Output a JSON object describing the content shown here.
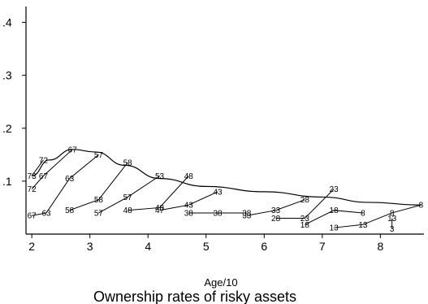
{
  "chart_data": {
    "type": "line",
    "title": "Ownership rates of risky assets",
    "xlabel": "Age/10",
    "ylabel": "",
    "xlim": [
      1.9,
      8.75
    ],
    "ylim": [
      0.0,
      0.43
    ],
    "xticks": [
      2,
      3,
      4,
      5,
      6,
      7,
      8
    ],
    "yticks": [
      {
        "value": 0.1,
        "label": ".1"
      },
      {
        "value": 0.2,
        "label": ".2"
      },
      {
        "value": 0.3,
        "label": ".3"
      },
      {
        "value": 0.4,
        "label": ".4"
      }
    ],
    "grid": false,
    "legend": "none",
    "smooth_curve": [
      {
        "x": 2.0,
        "y": 0.11
      },
      {
        "x": 2.3,
        "y": 0.14
      },
      {
        "x": 2.7,
        "y": 0.16
      },
      {
        "x": 3.1,
        "y": 0.155
      },
      {
        "x": 3.6,
        "y": 0.13
      },
      {
        "x": 4.2,
        "y": 0.105
      },
      {
        "x": 5.0,
        "y": 0.09
      },
      {
        "x": 6.0,
        "y": 0.08
      },
      {
        "x": 7.0,
        "y": 0.07
      },
      {
        "x": 7.8,
        "y": 0.06
      },
      {
        "x": 8.7,
        "y": 0.055
      }
    ],
    "series": [
      {
        "name": "73",
        "points": [
          {
            "x": 2.0,
            "y": 0.11,
            "label": "73"
          },
          {
            "x": 2.2,
            "y": 0.14,
            "label": "72"
          }
        ]
      },
      {
        "name": "72",
        "points": [
          {
            "x": 2.0,
            "y": 0.085,
            "label": "72"
          },
          {
            "x": 2.2,
            "y": 0.11,
            "label": "67"
          },
          {
            "x": 2.7,
            "y": 0.16,
            "label": "67"
          }
        ]
      },
      {
        "name": "67",
        "points": [
          {
            "x": 2.0,
            "y": 0.035,
            "label": "67"
          },
          {
            "x": 2.25,
            "y": 0.04,
            "label": "63"
          },
          {
            "x": 2.65,
            "y": 0.105,
            "label": "63"
          },
          {
            "x": 3.15,
            "y": 0.15,
            "label": "57"
          }
        ]
      },
      {
        "name": "63",
        "points": [
          {
            "x": 2.65,
            "y": 0.045,
            "label": "58"
          },
          {
            "x": 3.15,
            "y": 0.065,
            "label": "58"
          },
          {
            "x": 3.65,
            "y": 0.135,
            "label": "58"
          }
        ]
      },
      {
        "name": "58",
        "points": [
          {
            "x": 3.15,
            "y": 0.04,
            "label": "57"
          },
          {
            "x": 3.65,
            "y": 0.07,
            "label": "57"
          },
          {
            "x": 4.2,
            "y": 0.11,
            "label": "53"
          }
        ]
      },
      {
        "name": "53",
        "points": [
          {
            "x": 3.65,
            "y": 0.045,
            "label": "48"
          },
          {
            "x": 4.2,
            "y": 0.05,
            "label": "48"
          },
          {
            "x": 4.7,
            "y": 0.11,
            "label": "48"
          }
        ]
      },
      {
        "name": "47",
        "points": [
          {
            "x": 4.2,
            "y": 0.045,
            "label": "47"
          },
          {
            "x": 4.7,
            "y": 0.055,
            "label": "43"
          },
          {
            "x": 5.2,
            "y": 0.08,
            "label": "43"
          }
        ]
      },
      {
        "name": "38",
        "points": [
          {
            "x": 4.7,
            "y": 0.04,
            "label": "38"
          },
          {
            "x": 5.2,
            "y": 0.04,
            "label": "38"
          },
          {
            "x": 5.7,
            "y": 0.04,
            "label": "38"
          }
        ]
      },
      {
        "name": "33",
        "points": [
          {
            "x": 5.7,
            "y": 0.035,
            "label": "33"
          },
          {
            "x": 6.2,
            "y": 0.045,
            "label": "33"
          },
          {
            "x": 6.7,
            "y": 0.065,
            "label": "28"
          }
        ]
      },
      {
        "name": "28",
        "points": [
          {
            "x": 6.2,
            "y": 0.03,
            "label": "28"
          },
          {
            "x": 6.7,
            "y": 0.03,
            "label": "23"
          },
          {
            "x": 7.2,
            "y": 0.085,
            "label": "23"
          }
        ]
      },
      {
        "name": "18",
        "points": [
          {
            "x": 6.7,
            "y": 0.018,
            "label": "18"
          },
          {
            "x": 7.2,
            "y": 0.045,
            "label": "18"
          },
          {
            "x": 7.7,
            "y": 0.04,
            "label": "8"
          }
        ]
      },
      {
        "name": "13",
        "points": [
          {
            "x": 7.2,
            "y": 0.012,
            "label": "13"
          },
          {
            "x": 7.7,
            "y": 0.018,
            "label": "13"
          },
          {
            "x": 8.2,
            "y": 0.04,
            "label": "8"
          },
          {
            "x": 8.7,
            "y": 0.055,
            "label": "8"
          }
        ]
      },
      {
        "name": "3",
        "points": [
          {
            "x": 8.2,
            "y": 0.03,
            "label": "13"
          },
          {
            "x": 8.2,
            "y": 0.01,
            "label": "3"
          }
        ]
      }
    ]
  }
}
